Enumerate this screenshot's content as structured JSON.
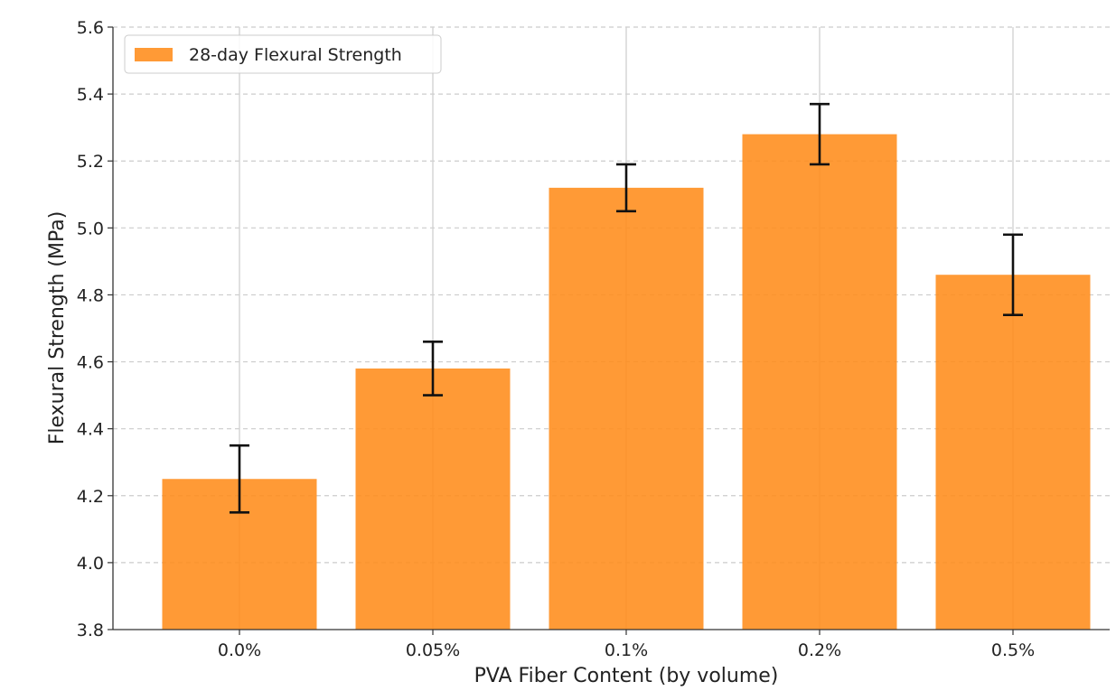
{
  "chart_data": {
    "type": "bar",
    "categories": [
      "0.0%",
      "0.05%",
      "0.1%",
      "0.2%",
      "0.5%"
    ],
    "series": [
      {
        "name": "28-day Flexural Strength",
        "values": [
          4.25,
          4.58,
          5.12,
          5.28,
          4.86
        ],
        "errors": [
          0.1,
          0.08,
          0.07,
          0.09,
          0.12
        ],
        "color": "#ff8c1a"
      }
    ],
    "xlabel": "PVA Fiber Content (by volume)",
    "ylabel": "Flexural Strength (MPa)",
    "ylim": [
      3.8,
      5.6
    ],
    "yticks": [
      "3.8",
      "4.0",
      "4.2",
      "4.4",
      "4.6",
      "4.8",
      "5.0",
      "5.2",
      "5.4",
      "5.6"
    ],
    "grid": {
      "horizontal": "dashed",
      "vertical": "solid"
    },
    "legend_position": "top-left",
    "error_bar_color": "#111111"
  }
}
